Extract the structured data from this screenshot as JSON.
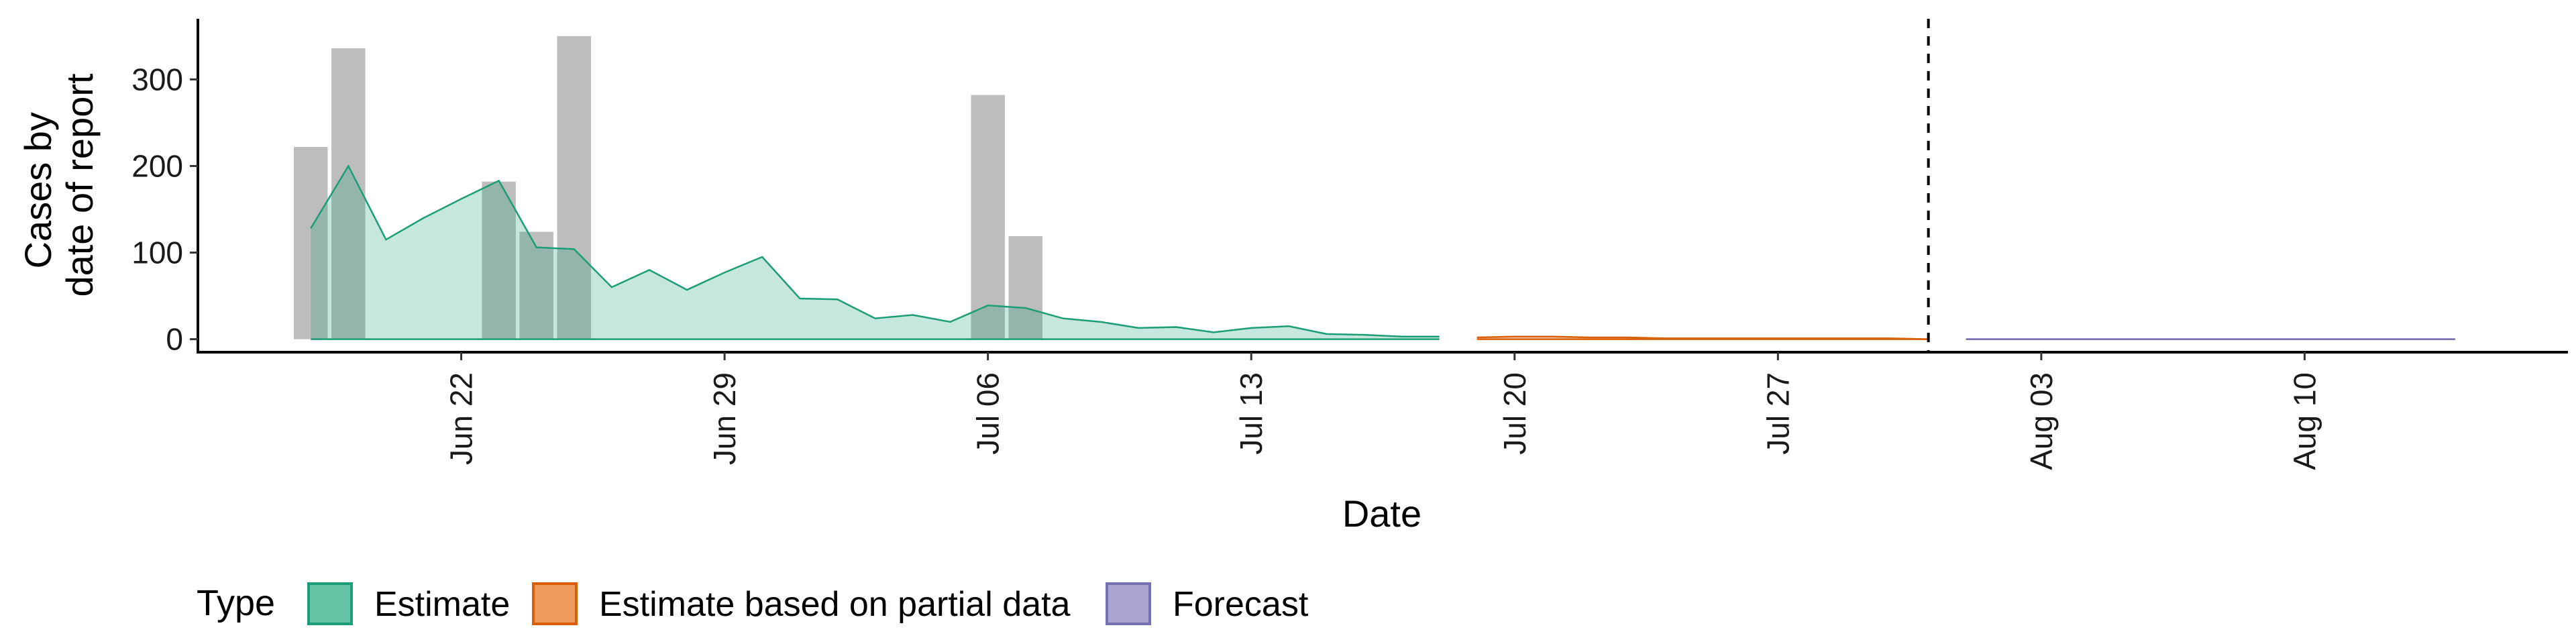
{
  "chart_data": {
    "type": "bar+area",
    "title": "",
    "xlabel": "Date",
    "ylabel_lines": [
      "Cases by",
      "date of report"
    ],
    "ylim": [
      -15,
      370
    ],
    "xlim": [
      "2020-06-15",
      "2020-08-17"
    ],
    "y_ticks": [
      0,
      100,
      200,
      300
    ],
    "x_ticks": [
      {
        "date": "2020-06-22",
        "label": "Jun 22"
      },
      {
        "date": "2020-06-29",
        "label": "Jun 29"
      },
      {
        "date": "2020-07-06",
        "label": "Jul 06"
      },
      {
        "date": "2020-07-13",
        "label": "Jul 13"
      },
      {
        "date": "2020-07-20",
        "label": "Jul 20"
      },
      {
        "date": "2020-07-27",
        "label": "Jul 27"
      },
      {
        "date": "2020-08-03",
        "label": "Aug 03"
      },
      {
        "date": "2020-08-10",
        "label": "Aug 10"
      }
    ],
    "reported_cases": {
      "color": "#bdbdbd",
      "bars": [
        {
          "date": "2020-06-18",
          "value": 222
        },
        {
          "date": "2020-06-19",
          "value": 336
        },
        {
          "date": "2020-06-23",
          "value": 182
        },
        {
          "date": "2020-06-24",
          "value": 124
        },
        {
          "date": "2020-06-25",
          "value": 350
        },
        {
          "date": "2020-07-06",
          "value": 282
        },
        {
          "date": "2020-07-07",
          "value": 119
        }
      ]
    },
    "vline_date": "2020-07-31",
    "series": [
      {
        "name": "Estimate",
        "color": "#1b9e77",
        "fill": "#1b9e77",
        "points": [
          [
            "2020-06-18",
            128
          ],
          [
            "2020-06-19",
            200
          ],
          [
            "2020-06-20",
            115
          ],
          [
            "2020-06-21",
            140
          ],
          [
            "2020-06-22",
            162
          ],
          [
            "2020-06-23",
            183
          ],
          [
            "2020-06-24",
            106
          ],
          [
            "2020-06-25",
            104
          ],
          [
            "2020-06-26",
            60
          ],
          [
            "2020-06-27",
            80
          ],
          [
            "2020-06-28",
            57
          ],
          [
            "2020-06-29",
            77
          ],
          [
            "2020-06-30",
            95
          ],
          [
            "2020-07-01",
            47
          ],
          [
            "2020-07-02",
            46
          ],
          [
            "2020-07-03",
            24
          ],
          [
            "2020-07-04",
            28
          ],
          [
            "2020-07-05",
            20
          ],
          [
            "2020-07-06",
            39
          ],
          [
            "2020-07-07",
            36
          ],
          [
            "2020-07-08",
            24
          ],
          [
            "2020-07-09",
            20
          ],
          [
            "2020-07-10",
            13
          ],
          [
            "2020-07-11",
            14
          ],
          [
            "2020-07-12",
            8
          ],
          [
            "2020-07-13",
            13
          ],
          [
            "2020-07-14",
            15
          ],
          [
            "2020-07-15",
            6
          ],
          [
            "2020-07-16",
            5
          ],
          [
            "2020-07-17",
            3
          ],
          [
            "2020-07-18",
            3
          ]
        ]
      },
      {
        "name": "Estimate based on partial data",
        "color": "#d95f02",
        "fill": "#d95f02",
        "points": [
          [
            "2020-07-19",
            2
          ],
          [
            "2020-07-20",
            3
          ],
          [
            "2020-07-21",
            3
          ],
          [
            "2020-07-22",
            2
          ],
          [
            "2020-07-23",
            2
          ],
          [
            "2020-07-24",
            1
          ],
          [
            "2020-07-25",
            1
          ],
          [
            "2020-07-26",
            1
          ],
          [
            "2020-07-27",
            1
          ],
          [
            "2020-07-28",
            1
          ],
          [
            "2020-07-29",
            1
          ],
          [
            "2020-07-30",
            1
          ],
          [
            "2020-07-31",
            0
          ]
        ]
      },
      {
        "name": "Forecast",
        "color": "#7570b3",
        "fill": "#7570b3",
        "points": [
          [
            "2020-08-01",
            0
          ],
          [
            "2020-08-05",
            0
          ],
          [
            "2020-08-09",
            0
          ],
          [
            "2020-08-14",
            0
          ]
        ]
      }
    ],
    "legend": {
      "title": "Type",
      "position": "bottom-left",
      "entries": [
        {
          "label": "Estimate",
          "fill": "#66c2a5",
          "stroke": "#1b9e77"
        },
        {
          "label": "Estimate based on partial data",
          "fill": "#ec9a5e",
          "stroke": "#d95f02"
        },
        {
          "label": "Forecast",
          "fill": "#a9a5d0",
          "stroke": "#7570b3"
        }
      ]
    },
    "grid": false
  }
}
